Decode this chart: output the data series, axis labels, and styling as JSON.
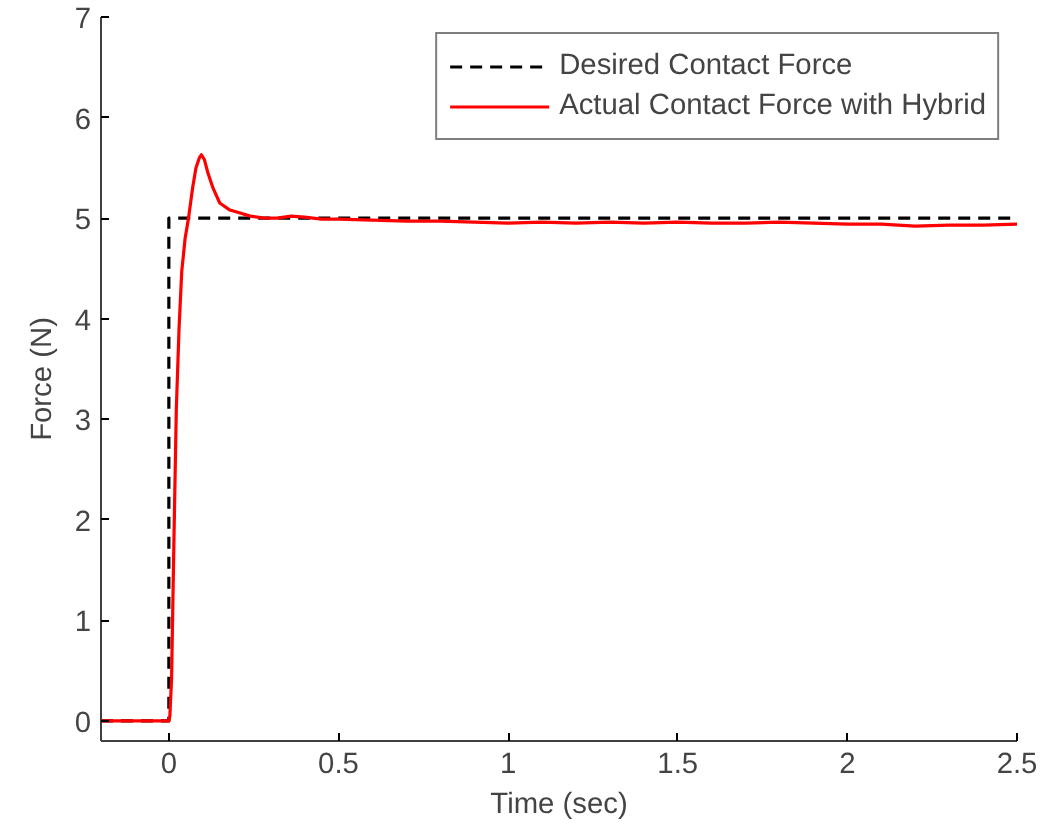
{
  "chart_data": {
    "type": "line",
    "xlabel": "Time (sec)",
    "ylabel": "Force (N)",
    "xlim": [
      -0.2,
      2.5
    ],
    "ylim": [
      -0.2,
      7
    ],
    "xticks": [
      0,
      0.5,
      1,
      1.5,
      2,
      2.5
    ],
    "yticks": [
      0,
      1,
      2,
      3,
      4,
      5,
      6,
      7
    ],
    "grid": false,
    "legend": "top right",
    "series": [
      {
        "name": "Desired Contact Force",
        "color": "#000000",
        "line_style": "dashed",
        "x": [
          -0.2,
          0,
          0,
          2.5
        ],
        "values": [
          0,
          0,
          5,
          5
        ]
      },
      {
        "name": "Actual Contact Force with Hybrid",
        "color": "#ff0000",
        "line_style": "solid",
        "x": [
          -0.2,
          0.0,
          0.003,
          0.008,
          0.015,
          0.022,
          0.03,
          0.038,
          0.048,
          0.058,
          0.07,
          0.08,
          0.09,
          0.096,
          0.105,
          0.115,
          0.13,
          0.15,
          0.18,
          0.21,
          0.24,
          0.28,
          0.32,
          0.36,
          0.4,
          0.45,
          0.5,
          0.6,
          0.7,
          0.8,
          0.9,
          1.0,
          1.1,
          1.2,
          1.3,
          1.4,
          1.5,
          1.6,
          1.7,
          1.8,
          1.9,
          2.0,
          2.1,
          2.2,
          2.3,
          2.4,
          2.5
        ],
        "values": [
          0,
          0,
          0.05,
          0.42,
          1.8,
          3.1,
          3.9,
          4.47,
          4.8,
          5.0,
          5.3,
          5.5,
          5.6,
          5.63,
          5.58,
          5.45,
          5.3,
          5.15,
          5.08,
          5.05,
          5.02,
          5.0,
          5.0,
          5.02,
          5.01,
          4.99,
          4.99,
          4.98,
          4.97,
          4.97,
          4.96,
          4.95,
          4.96,
          4.95,
          4.96,
          4.95,
          4.96,
          4.95,
          4.95,
          4.96,
          4.95,
          4.94,
          4.94,
          4.92,
          4.93,
          4.93,
          4.94
        ]
      }
    ]
  }
}
